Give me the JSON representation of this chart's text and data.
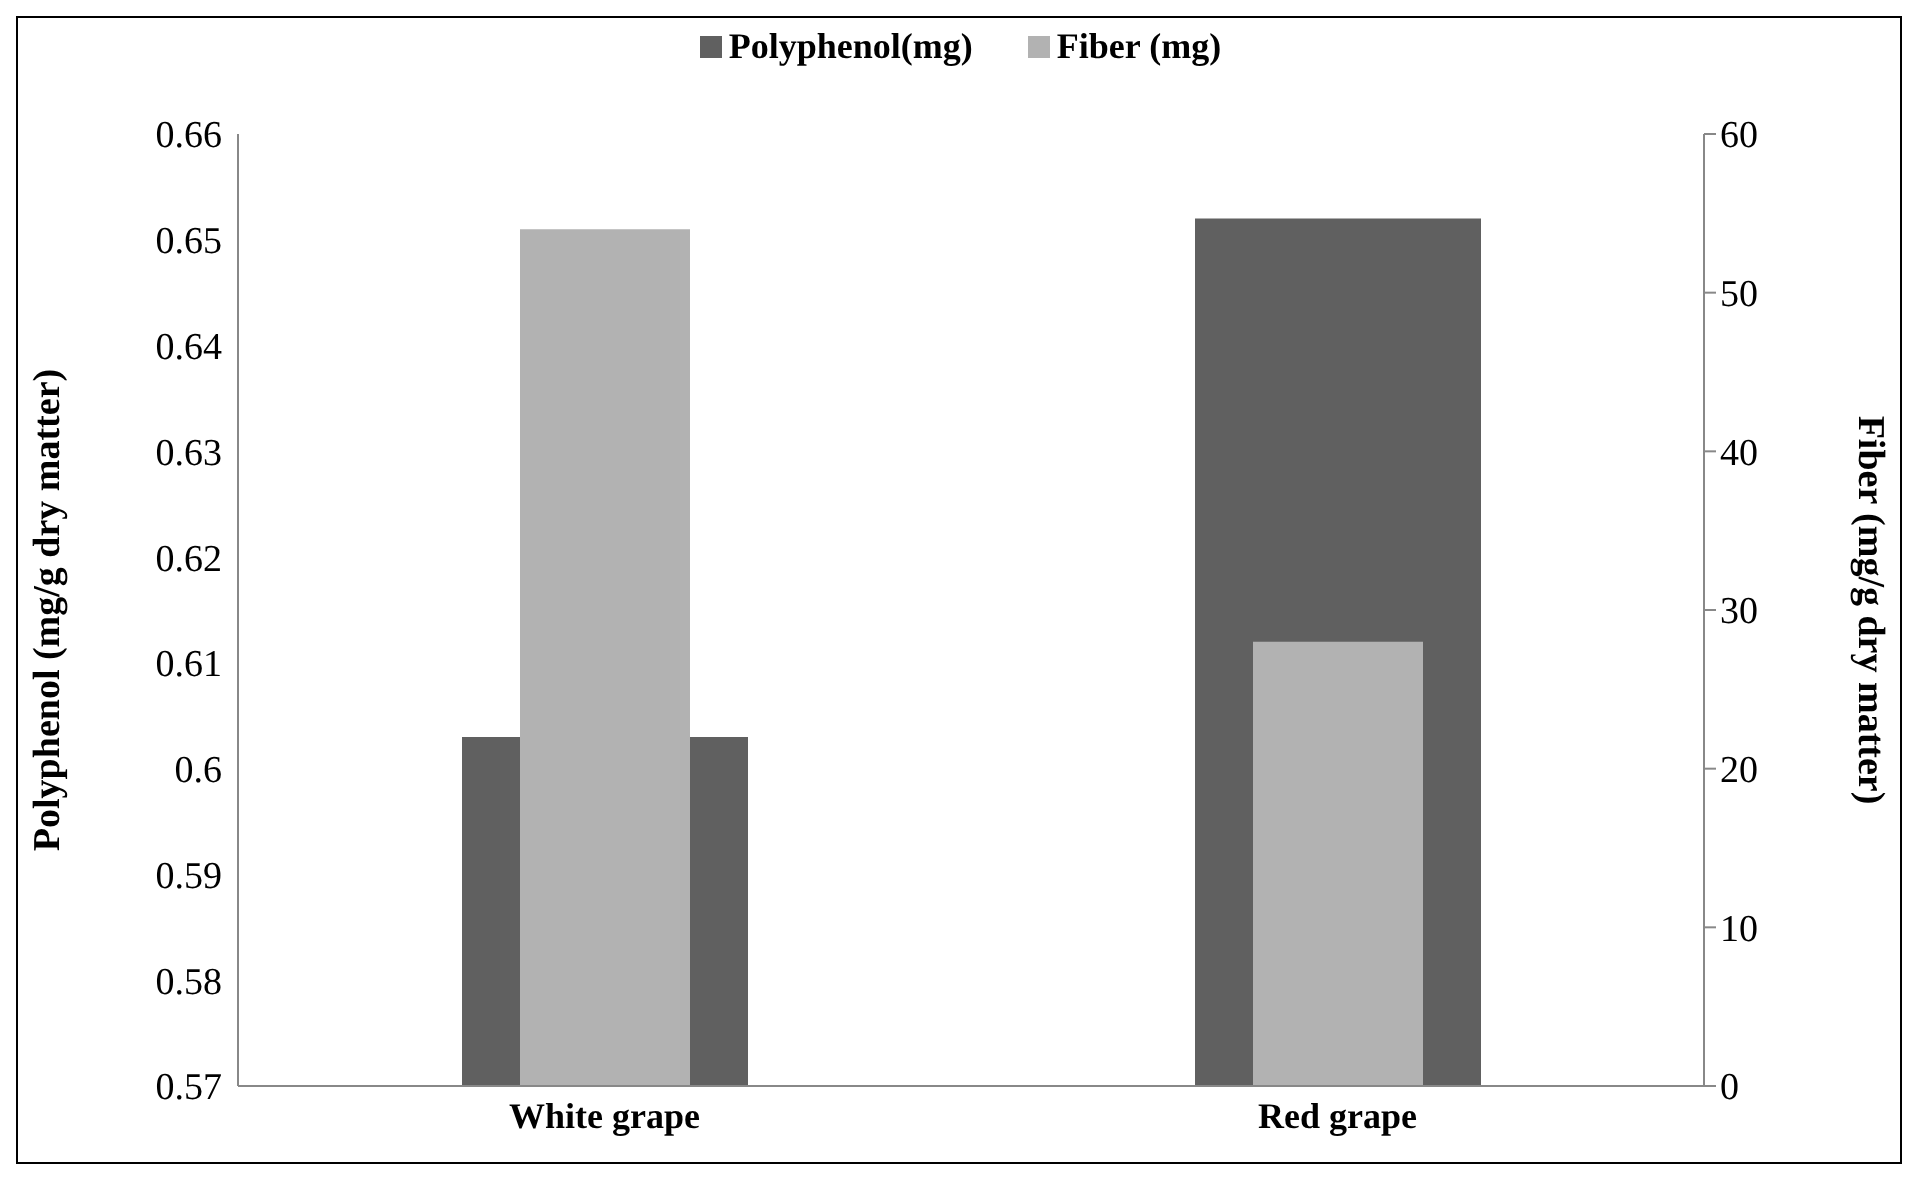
{
  "chart_data": {
    "type": "bar",
    "categories": [
      "White grape",
      "Red grape"
    ],
    "series": [
      {
        "name": "Polyphenol(mg)",
        "color": "#606060",
        "values": [
          0.603,
          0.652
        ]
      },
      {
        "name": "Fiber (mg)",
        "color": "#b2b2b2",
        "values": [
          54,
          28
        ],
        "axis": "y2"
      }
    ],
    "ylabel": "Polyphenol (mg/g dry   matter)",
    "y2label": "Fiber (mg/g dry matter)",
    "ylim": [
      0.57,
      0.66
    ],
    "yticks": [
      0.57,
      0.58,
      0.59,
      0.6,
      0.61,
      0.62,
      0.63,
      0.64,
      0.65,
      0.66
    ],
    "y2lim": [
      0,
      60
    ],
    "y2ticks": [
      0,
      10,
      20,
      30,
      40,
      50,
      60
    ],
    "legend": "top",
    "grid": false
  }
}
